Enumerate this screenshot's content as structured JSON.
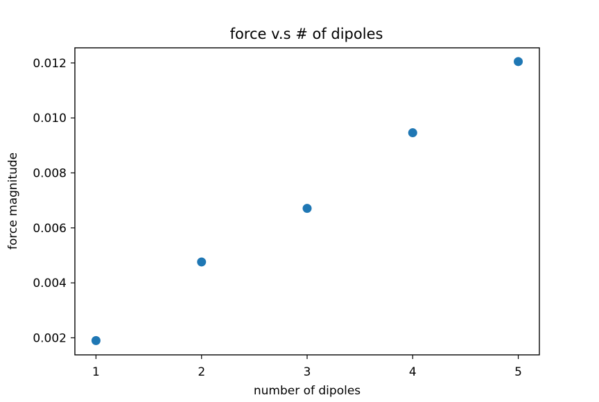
{
  "chart_data": {
    "type": "scatter",
    "title": "force v.s # of dipoles",
    "xlabel": "number of dipoles",
    "ylabel": "force magnitude",
    "xlim": [
      0.8,
      5.2
    ],
    "ylim": [
      0.00138,
      0.01255
    ],
    "xticks": [
      1,
      2,
      3,
      4,
      5
    ],
    "xtick_labels": [
      "1",
      "2",
      "3",
      "4",
      "5"
    ],
    "yticks": [
      0.002,
      0.004,
      0.006,
      0.008,
      0.01,
      0.012
    ],
    "ytick_labels": [
      "0.002",
      "0.004",
      "0.006",
      "0.008",
      "0.010",
      "0.012"
    ],
    "grid": false,
    "series": [
      {
        "color": "#1f77b4",
        "points": [
          {
            "x": 1,
            "y": 0.0019
          },
          {
            "x": 2,
            "y": 0.00476
          },
          {
            "x": 3,
            "y": 0.00671
          },
          {
            "x": 4,
            "y": 0.00946
          },
          {
            "x": 5,
            "y": 0.01205
          }
        ]
      }
    ],
    "colors": {
      "axis": "#000000",
      "marker": "#1f77b4",
      "background": "#ffffff"
    }
  }
}
